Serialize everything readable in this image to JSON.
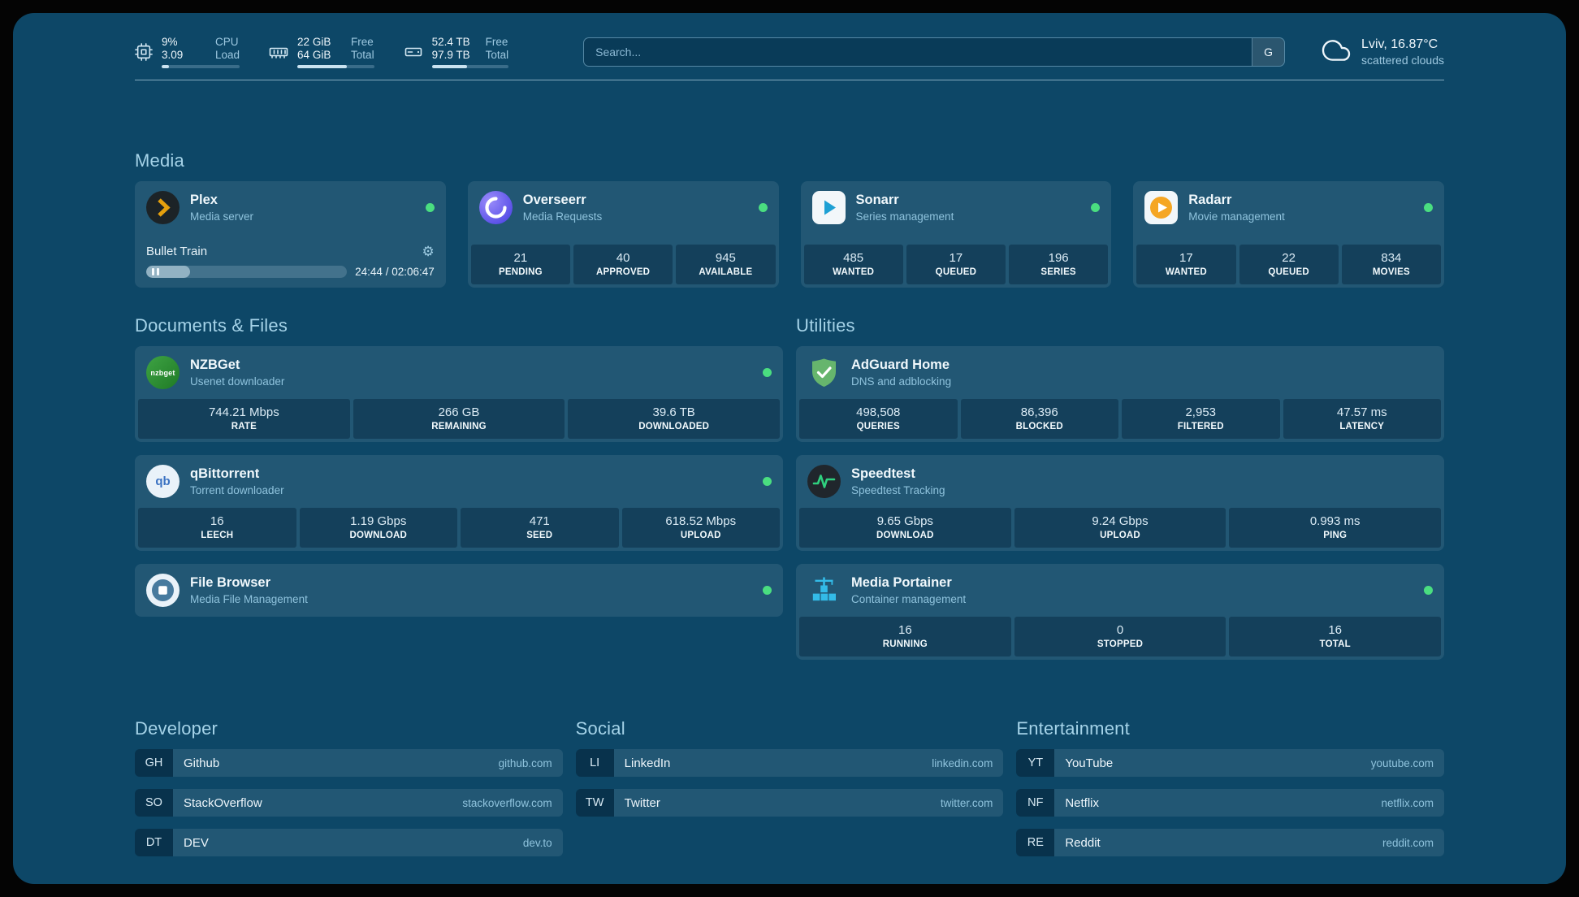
{
  "topbar": {
    "resources": [
      {
        "icon": "cpu-icon",
        "rows": [
          {
            "value": "9%",
            "label": "CPU"
          },
          {
            "value": "3.09",
            "label": "Load"
          }
        ],
        "percent": 9
      },
      {
        "icon": "memory-icon",
        "rows": [
          {
            "value": "22 GiB",
            "label": "Free"
          },
          {
            "value": "64 GiB",
            "label": "Total"
          }
        ],
        "percent": 65
      },
      {
        "icon": "disk-icon",
        "rows": [
          {
            "value": "52.4 TB",
            "label": "Free"
          },
          {
            "value": "97.9 TB",
            "label": "Total"
          }
        ],
        "percent": 46
      }
    ],
    "search": {
      "placeholder": "Search...",
      "button": "G"
    },
    "weather": {
      "location": "Lviv, 16.87°C",
      "condition": "scattered clouds"
    }
  },
  "icons": {
    "gear": "⚙"
  },
  "media": {
    "title": "Media",
    "plex": {
      "name": "Plex",
      "subtitle": "Media server",
      "online": true,
      "player": {
        "title": "Bullet Train",
        "time": "24:44 / 02:06:47",
        "progress": 20
      }
    },
    "overseerr": {
      "name": "Overseerr",
      "subtitle": "Media Requests",
      "online": true,
      "stats": [
        {
          "value": "21",
          "label": "PENDING"
        },
        {
          "value": "40",
          "label": "APPROVED"
        },
        {
          "value": "945",
          "label": "AVAILABLE"
        }
      ]
    },
    "sonarr": {
      "name": "Sonarr",
      "subtitle": "Series management",
      "online": true,
      "stats": [
        {
          "value": "485",
          "label": "WANTED"
        },
        {
          "value": "17",
          "label": "QUEUED"
        },
        {
          "value": "196",
          "label": "SERIES"
        }
      ]
    },
    "radarr": {
      "name": "Radarr",
      "subtitle": "Movie management",
      "online": true,
      "stats": [
        {
          "value": "17",
          "label": "WANTED"
        },
        {
          "value": "22",
          "label": "QUEUED"
        },
        {
          "value": "834",
          "label": "MOVIES"
        }
      ]
    }
  },
  "documents": {
    "title": "Documents & Files",
    "nzbget": {
      "name": "NZBGet",
      "subtitle": "Usenet downloader",
      "online": true,
      "icon_text": "nzbget",
      "stats": [
        {
          "value": "744.21 Mbps",
          "label": "RATE"
        },
        {
          "value": "266 GB",
          "label": "REMAINING"
        },
        {
          "value": "39.6 TB",
          "label": "DOWNLOADED"
        }
      ]
    },
    "qbittorrent": {
      "name": "qBittorrent",
      "subtitle": "Torrent downloader",
      "online": true,
      "icon_text": "qb",
      "stats": [
        {
          "value": "16",
          "label": "LEECH"
        },
        {
          "value": "1.19 Gbps",
          "label": "DOWNLOAD"
        },
        {
          "value": "471",
          "label": "SEED"
        },
        {
          "value": "618.52 Mbps",
          "label": "UPLOAD"
        }
      ]
    },
    "filebrowser": {
      "name": "File Browser",
      "subtitle": "Media File Management",
      "online": true
    }
  },
  "utilities": {
    "title": "Utilities",
    "adguard": {
      "name": "AdGuard Home",
      "subtitle": "DNS and adblocking",
      "online": false,
      "stats": [
        {
          "value": "498,508",
          "label": "QUERIES"
        },
        {
          "value": "86,396",
          "label": "BLOCKED"
        },
        {
          "value": "2,953",
          "label": "FILTERED"
        },
        {
          "value": "47.57 ms",
          "label": "LATENCY"
        }
      ]
    },
    "speedtest": {
      "name": "Speedtest",
      "subtitle": "Speedtest Tracking",
      "online": false,
      "stats": [
        {
          "value": "9.65 Gbps",
          "label": "DOWNLOAD"
        },
        {
          "value": "9.24 Gbps",
          "label": "UPLOAD"
        },
        {
          "value": "0.993 ms",
          "label": "PING"
        }
      ]
    },
    "portainer": {
      "name": "Media Portainer",
      "subtitle": "Container management",
      "online": true,
      "stats": [
        {
          "value": "16",
          "label": "RUNNING"
        },
        {
          "value": "0",
          "label": "STOPPED"
        },
        {
          "value": "16",
          "label": "TOTAL"
        }
      ]
    }
  },
  "bookmarks": {
    "developer": {
      "title": "Developer",
      "items": [
        {
          "abbr": "GH",
          "name": "Github",
          "url": "github.com"
        },
        {
          "abbr": "SO",
          "name": "StackOverflow",
          "url": "stackoverflow.com"
        },
        {
          "abbr": "DT",
          "name": "DEV",
          "url": "dev.to"
        }
      ]
    },
    "social": {
      "title": "Social",
      "items": [
        {
          "abbr": "LI",
          "name": "LinkedIn",
          "url": "linkedin.com"
        },
        {
          "abbr": "TW",
          "name": "Twitter",
          "url": "twitter.com"
        }
      ]
    },
    "entertainment": {
      "title": "Entertainment",
      "items": [
        {
          "abbr": "YT",
          "name": "YouTube",
          "url": "youtube.com"
        },
        {
          "abbr": "NF",
          "name": "Netflix",
          "url": "netflix.com"
        },
        {
          "abbr": "RE",
          "name": "Reddit",
          "url": "reddit.com"
        }
      ]
    }
  },
  "colors": {
    "online": "#4ade80",
    "accent": "#a5d3e8",
    "panel": "#0d4767"
  }
}
